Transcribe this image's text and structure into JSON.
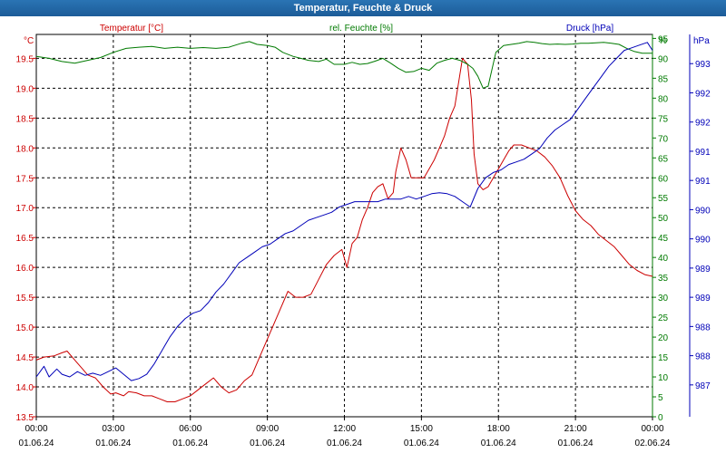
{
  "window": {
    "title": "Temperatur, Feuchte & Druck"
  },
  "colors": {
    "temp": "#cc0000",
    "hum": "#007a00",
    "press": "#0000b8",
    "grid": "#000000",
    "axis_text": "#000000"
  },
  "chart_data": {
    "type": "line",
    "title": "Temperatur, Feuchte & Druck",
    "x_ticks": [
      {
        "time": "00:00",
        "date": "01.06.24"
      },
      {
        "time": "03:00",
        "date": "01.06.24"
      },
      {
        "time": "06:00",
        "date": "01.06.24"
      },
      {
        "time": "09:00",
        "date": "01.06.24"
      },
      {
        "time": "12:00",
        "date": "01.06.24"
      },
      {
        "time": "15:00",
        "date": "01.06.24"
      },
      {
        "time": "18:00",
        "date": "01.06.24"
      },
      {
        "time": "21:00",
        "date": "01.06.24"
      },
      {
        "time": "00:00",
        "date": "02.06.24"
      }
    ],
    "xlim_hours": [
      0,
      24
    ],
    "axes": {
      "temp": {
        "unit": "°C",
        "label": "Temperatur [°C]",
        "ylim": [
          13.5,
          19.9
        ],
        "ticks": [
          "19.5",
          "19.0",
          "18.5",
          "18.0",
          "17.5",
          "17.0",
          "16.5",
          "16.0",
          "15.5",
          "15.0",
          "14.5",
          "14.0",
          "13.5"
        ]
      },
      "hum": {
        "unit": "%",
        "label": "rel. Feuchte [%]",
        "ylim": [
          0,
          96
        ],
        "ticks": [
          "95",
          "90",
          "85",
          "80",
          "75",
          "70",
          "65",
          "60",
          "55",
          "50",
          "45",
          "40",
          "35",
          "30",
          "25",
          "20",
          "15",
          "10",
          "5",
          "0"
        ]
      },
      "press": {
        "unit": "hPa",
        "label": "Druck [hPa]",
        "ylim": [
          986.2,
          993.4
        ],
        "ticks": [
          "993",
          "992",
          "992",
          "991",
          "991",
          "990",
          "990",
          "989",
          "989",
          "988",
          "988",
          "987"
        ]
      }
    },
    "series": [
      {
        "name": "Temperatur",
        "axis": "temp",
        "x": [
          0,
          0.3,
          0.7,
          1,
          1.2,
          1.5,
          1.8,
          2,
          2.3,
          2.6,
          2.9,
          3.1,
          3.4,
          3.6,
          3.9,
          4.2,
          4.5,
          4.8,
          5.1,
          5.4,
          5.7,
          6,
          6.3,
          6.6,
          6.9,
          7.2,
          7.5,
          7.8,
          8.1,
          8.4,
          8.7,
          9,
          9.2,
          9.5,
          9.8,
          10.1,
          10.4,
          10.7,
          11,
          11.3,
          11.6,
          11.9,
          12.1,
          12.3,
          12.5,
          12.7,
          12.9,
          13.1,
          13.3,
          13.5,
          13.7,
          13.9,
          14,
          14.2,
          14.4,
          14.6,
          14.8,
          15.1,
          15.3,
          15.5,
          15.7,
          15.9,
          16.1,
          16.3,
          16.6,
          16.8,
          16.95,
          17.05,
          17.2,
          17.4,
          17.6,
          17.8,
          18,
          18.2,
          18.4,
          18.6,
          18.9,
          19.2,
          19.5,
          19.8,
          20.1,
          20.4,
          20.7,
          21,
          21.3,
          21.6,
          21.9,
          22.2,
          22.5,
          22.8,
          23.1,
          23.4,
          23.7,
          24
        ],
        "values": [
          14.45,
          14.5,
          14.52,
          14.57,
          14.6,
          14.45,
          14.3,
          14.2,
          14.15,
          14.0,
          13.88,
          13.9,
          13.85,
          13.92,
          13.9,
          13.85,
          13.85,
          13.8,
          13.75,
          13.75,
          13.8,
          13.85,
          13.95,
          14.05,
          14.15,
          14.0,
          13.9,
          13.95,
          14.1,
          14.2,
          14.5,
          14.8,
          15.0,
          15.3,
          15.6,
          15.5,
          15.5,
          15.55,
          15.8,
          16.05,
          16.2,
          16.3,
          16.0,
          16.4,
          16.5,
          16.8,
          17.0,
          17.25,
          17.35,
          17.4,
          17.15,
          17.25,
          17.6,
          18.0,
          17.8,
          17.5,
          17.5,
          17.5,
          17.65,
          17.8,
          18.0,
          18.2,
          18.5,
          18.7,
          19.5,
          19.4,
          18.8,
          17.9,
          17.4,
          17.3,
          17.35,
          17.5,
          17.65,
          17.8,
          17.95,
          18.05,
          18.05,
          18.0,
          17.95,
          17.85,
          17.7,
          17.5,
          17.2,
          16.95,
          16.8,
          16.7,
          16.55,
          16.45,
          16.35,
          16.2,
          16.05,
          15.95,
          15.88,
          15.85
        ]
      },
      {
        "name": "rel. Feuchte",
        "axis": "hum",
        "x": [
          0,
          0.5,
          1,
          1.5,
          2,
          2.5,
          3,
          3.5,
          4,
          4.5,
          5,
          5.5,
          6,
          6.5,
          7,
          7.5,
          8,
          8.3,
          8.6,
          9,
          9.3,
          9.6,
          10,
          10.3,
          10.6,
          11,
          11.3,
          11.6,
          12,
          12.3,
          12.6,
          12.9,
          13.2,
          13.5,
          13.8,
          14.1,
          14.4,
          14.7,
          15,
          15.3,
          15.6,
          15.9,
          16.2,
          16.5,
          16.8,
          17,
          17.2,
          17.4,
          17.6,
          17.9,
          18.2,
          18.5,
          18.8,
          19.1,
          19.4,
          19.7,
          20,
          20.3,
          20.6,
          20.9,
          21.2,
          21.5,
          21.8,
          22.1,
          22.4,
          22.7,
          23,
          23.3,
          23.6,
          24
        ],
        "values": [
          90.5,
          90,
          89.2,
          88.8,
          89.5,
          90.2,
          91.5,
          92.5,
          92.8,
          93,
          92.5,
          92.8,
          92.5,
          92.7,
          92.5,
          92.8,
          93.8,
          94.2,
          93.5,
          93.2,
          92.8,
          91.5,
          90.5,
          90,
          89.5,
          89.2,
          89.8,
          88.5,
          88.5,
          89,
          88.5,
          88.7,
          89.3,
          90,
          88.8,
          87.5,
          86.5,
          86.7,
          87.5,
          87,
          88.8,
          89.5,
          90,
          89.5,
          88.5,
          87.5,
          85.5,
          82.5,
          83,
          91.5,
          93.2,
          93.5,
          93.8,
          94.2,
          94,
          93.7,
          93.5,
          93.6,
          93.5,
          93.6,
          93.8,
          93.8,
          93.9,
          94,
          93.8,
          93.5,
          92.5,
          91.7,
          91.3,
          91.3
        ]
      },
      {
        "name": "Druck",
        "axis": "press",
        "x": [
          0,
          0.3,
          0.5,
          0.8,
          1,
          1.3,
          1.6,
          1.9,
          2.2,
          2.5,
          2.8,
          3.1,
          3.4,
          3.7,
          4,
          4.3,
          4.6,
          4.9,
          5.2,
          5.5,
          5.8,
          6.1,
          6.4,
          6.7,
          7,
          7.3,
          7.6,
          7.9,
          8.2,
          8.5,
          8.8,
          9.1,
          9.4,
          9.7,
          10,
          10.3,
          10.6,
          10.9,
          11.2,
          11.5,
          11.8,
          12.1,
          12.4,
          12.7,
          13,
          13.3,
          13.6,
          13.9,
          14.2,
          14.5,
          14.8,
          15.1,
          15.4,
          15.7,
          16,
          16.3,
          16.6,
          16.9,
          17.2,
          17.5,
          17.8,
          18.1,
          18.4,
          18.7,
          19,
          19.3,
          19.6,
          19.9,
          20.2,
          20.5,
          20.8,
          21.1,
          21.4,
          21.7,
          22,
          22.3,
          22.6,
          22.9,
          23.2,
          23.5,
          23.8,
          24
        ],
        "values": [
          986.95,
          987.15,
          986.95,
          987.1,
          987.0,
          986.95,
          987.05,
          986.98,
          987.02,
          986.98,
          987.05,
          987.12,
          987.0,
          986.88,
          986.92,
          987.0,
          987.2,
          987.45,
          987.7,
          987.9,
          988.05,
          988.15,
          988.2,
          988.35,
          988.55,
          988.7,
          988.9,
          989.1,
          989.2,
          989.3,
          989.4,
          989.45,
          989.55,
          989.65,
          989.7,
          989.8,
          989.9,
          989.95,
          990.0,
          990.05,
          990.15,
          990.2,
          990.25,
          990.25,
          990.25,
          990.25,
          990.3,
          990.3,
          990.3,
          990.35,
          990.3,
          990.35,
          990.4,
          990.42,
          990.4,
          990.35,
          990.25,
          990.15,
          990.5,
          990.7,
          990.8,
          990.85,
          990.95,
          991.0,
          991.05,
          991.15,
          991.25,
          991.45,
          991.6,
          991.7,
          991.8,
          992.0,
          992.2,
          992.4,
          992.6,
          992.8,
          992.95,
          993.1,
          993.15,
          993.2,
          993.25,
          993.1
        ]
      }
    ]
  }
}
